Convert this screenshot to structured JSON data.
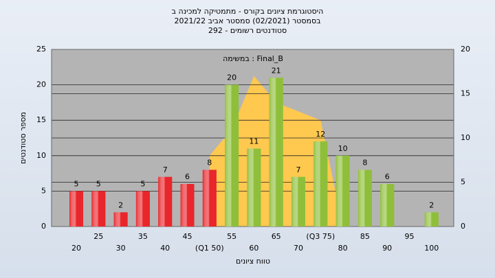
{
  "chart_data": {
    "type": "bar",
    "title": [
      "היסטוגרמת ציונים בקורס - מתמטיקה למכינה ב",
      "בסמסטר  (02/2021)  סמסטר אביב 2021/22",
      "סטודנטים רשומים - 292"
    ],
    "annotation": "Final_B : במשימה",
    "x_label": "טווח ציונים",
    "y_label": "מספר סטודנטים",
    "categories": [
      "20",
      "25",
      "30",
      "35",
      "40",
      "45",
      "(Q1 50)",
      "55",
      "60",
      "65",
      "70",
      "(Q3 75)",
      "80",
      "85",
      "90",
      "95",
      "100"
    ],
    "values": [
      5,
      5,
      2,
      5,
      7,
      6,
      8,
      20,
      11,
      21,
      7,
      12,
      10,
      8,
      6,
      null,
      2
    ],
    "bar_colors": [
      "#e8262b",
      "#e8262b",
      "#e8262b",
      "#e8262b",
      "#e8262b",
      "#e8262b",
      "#e8262b",
      "#8fbf3a",
      "#8fbf3a",
      "#8fbf3a",
      "#8fbf3a",
      "#8fbf3a",
      "#8fbf3a",
      "#8fbf3a",
      "#8fbf3a",
      "#8fbf3a",
      "#8fbf3a"
    ],
    "area": {
      "axis": "y2",
      "color": "#ffc84f",
      "values": [
        null,
        null,
        null,
        null,
        null,
        null,
        8,
        11,
        17,
        14,
        13,
        12,
        0,
        null,
        null,
        null,
        null
      ]
    },
    "ylim": [
      0,
      25
    ],
    "yticks": [
      0,
      5,
      10,
      15,
      20,
      25
    ],
    "y2lim": [
      0,
      20
    ],
    "y2ticks": [
      0,
      5,
      10,
      15,
      20
    ],
    "grid": true
  }
}
